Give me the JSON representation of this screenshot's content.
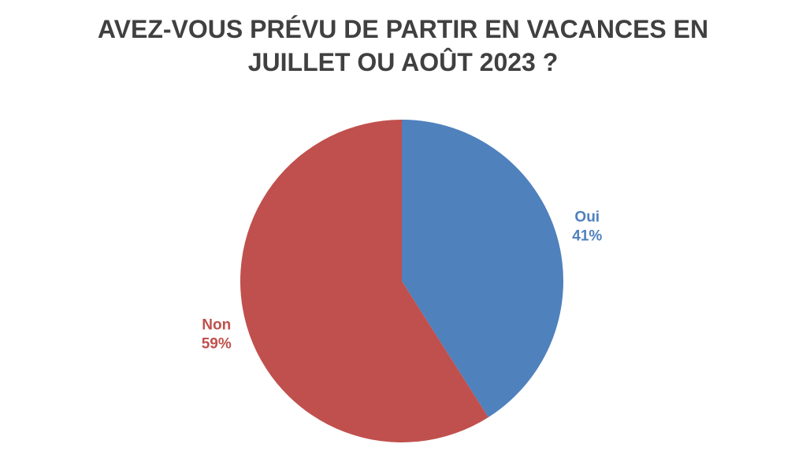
{
  "chart_data": {
    "type": "pie",
    "title": "AVEZ-VOUS PRÉVU DE PARTIR EN VACANCES EN JUILLET OU AOÛT 2023 ?",
    "categories": [
      "Oui",
      "Non"
    ],
    "values": [
      41,
      59
    ],
    "value_labels": [
      "41%",
      "59%"
    ],
    "colors": [
      "#4f81bd",
      "#c0504d"
    ]
  }
}
